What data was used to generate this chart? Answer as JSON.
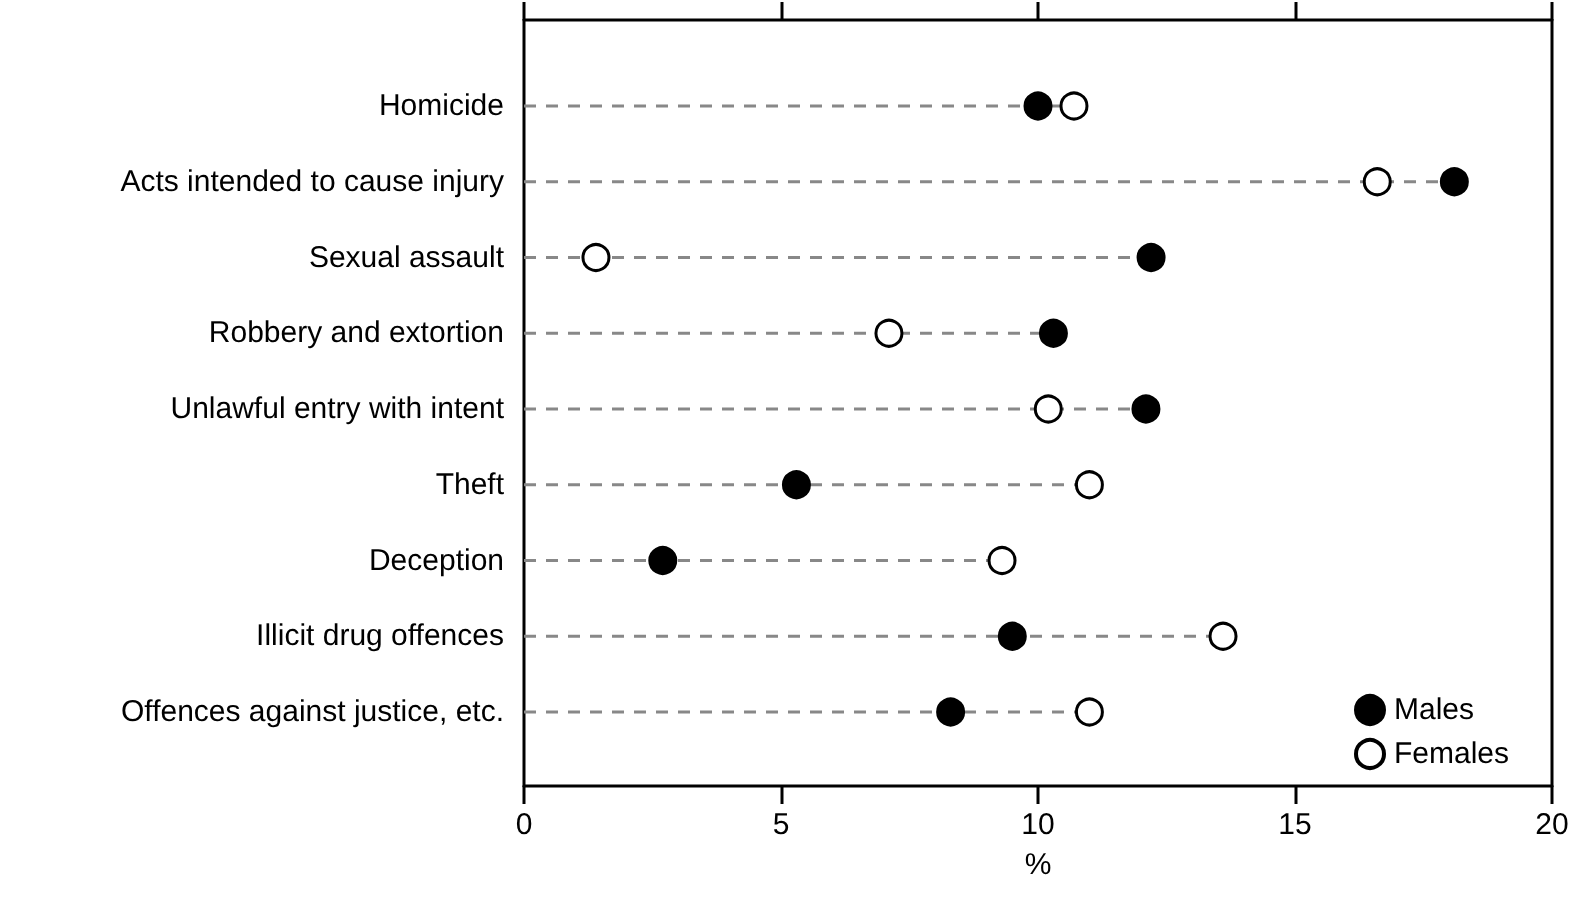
{
  "chart_data": {
    "type": "lollipop",
    "orientation": "horizontal",
    "xlabel": "%",
    "categories": [
      "Homicide",
      "Acts intended to cause injury",
      "Sexual assault",
      "Robbery and extortion",
      "Unlawful entry with intent",
      "Theft",
      "Deception",
      "Illicit drug offences",
      "Offences against justice, etc."
    ],
    "series": [
      {
        "name": "Males",
        "color": "#000000",
        "values": [
          10.0,
          18.1,
          12.2,
          10.3,
          12.1,
          5.3,
          2.7,
          9.5,
          8.3
        ]
      },
      {
        "name": "Females",
        "color": "#ffffff",
        "values": [
          10.7,
          16.6,
          1.4,
          7.1,
          10.2,
          11.0,
          9.3,
          13.6,
          11.0
        ]
      }
    ],
    "xlim": [
      0,
      20
    ],
    "xticks": [
      0,
      5,
      10,
      15,
      20
    ],
    "grid": false,
    "legend": "bottom right",
    "marker": "circle",
    "line_style": "dashed"
  }
}
